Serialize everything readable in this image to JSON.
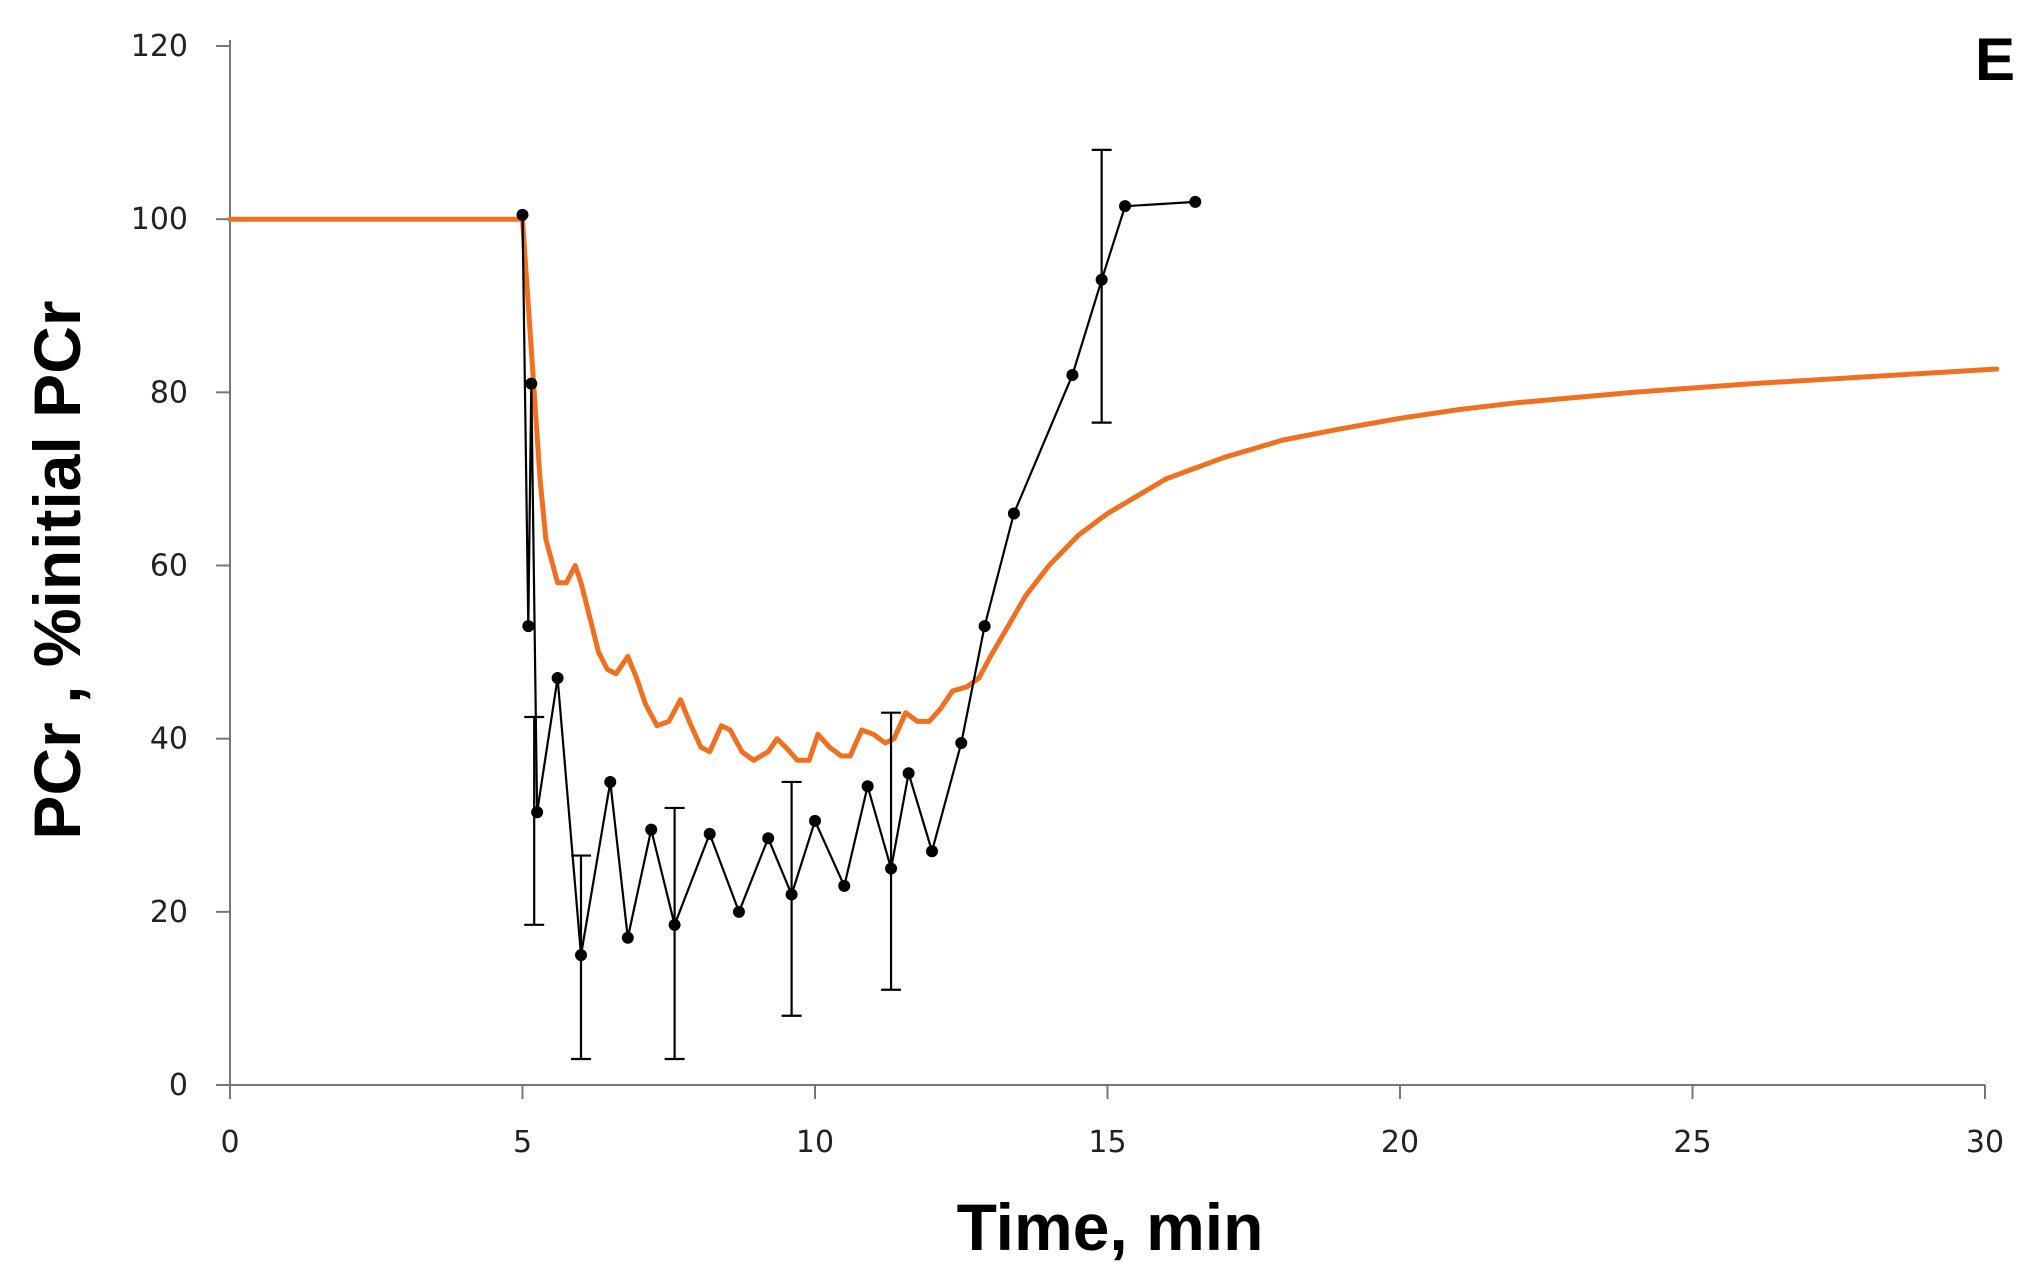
{
  "chart_data": {
    "type": "line",
    "title": "",
    "panel_label": "E",
    "xlabel": "Time, min",
    "ylabel": "PCr , %initial PCr",
    "xlim": [
      0,
      30
    ],
    "ylim": [
      0,
      120
    ],
    "xticks": [
      "0",
      "5",
      "10",
      "15",
      "20",
      "25",
      "30"
    ],
    "yticks": [
      "0",
      "20",
      "40",
      "60",
      "80",
      "100",
      "120"
    ],
    "grid": false,
    "legend": "none",
    "series": [
      {
        "color": "#f07020",
        "style": "line",
        "points": [
          [
            0,
            100
          ],
          [
            5.0,
            100
          ],
          [
            5.1,
            90
          ],
          [
            5.2,
            80
          ],
          [
            5.3,
            70
          ],
          [
            5.4,
            63
          ],
          [
            5.6,
            58
          ],
          [
            5.75,
            58
          ],
          [
            5.9,
            60
          ],
          [
            6.0,
            58
          ],
          [
            6.15,
            54
          ],
          [
            6.3,
            50
          ],
          [
            6.45,
            48
          ],
          [
            6.6,
            47.5
          ],
          [
            6.8,
            49.5
          ],
          [
            6.95,
            47
          ],
          [
            7.1,
            44
          ],
          [
            7.3,
            41.5
          ],
          [
            7.5,
            42
          ],
          [
            7.7,
            44.5
          ],
          [
            7.85,
            42
          ],
          [
            8.05,
            39
          ],
          [
            8.2,
            38.5
          ],
          [
            8.4,
            41.5
          ],
          [
            8.55,
            41
          ],
          [
            8.75,
            38.5
          ],
          [
            8.95,
            37.5
          ],
          [
            9.2,
            38.5
          ],
          [
            9.35,
            40
          ],
          [
            9.5,
            39
          ],
          [
            9.7,
            37.5
          ],
          [
            9.9,
            37.5
          ],
          [
            10.05,
            40.5
          ],
          [
            10.25,
            39
          ],
          [
            10.45,
            38
          ],
          [
            10.6,
            38
          ],
          [
            10.8,
            41
          ],
          [
            11.0,
            40.5
          ],
          [
            11.2,
            39.5
          ],
          [
            11.35,
            40
          ],
          [
            11.55,
            43
          ],
          [
            11.75,
            42
          ],
          [
            11.95,
            42
          ],
          [
            12.15,
            43.5
          ],
          [
            12.35,
            45.5
          ],
          [
            12.6,
            46
          ],
          [
            12.8,
            47
          ],
          [
            13.0,
            49.5
          ],
          [
            13.3,
            53
          ],
          [
            13.6,
            56.5
          ],
          [
            14.0,
            60
          ],
          [
            14.5,
            63.5
          ],
          [
            15.0,
            66
          ],
          [
            15.5,
            68
          ],
          [
            16.0,
            70
          ],
          [
            17.0,
            72.5
          ],
          [
            18.0,
            74.5
          ],
          [
            19.0,
            75.8
          ],
          [
            20.0,
            77
          ],
          [
            21.0,
            78
          ],
          [
            22.0,
            78.8
          ],
          [
            23.0,
            79.4
          ],
          [
            24.0,
            80
          ],
          [
            25.0,
            80.5
          ],
          [
            26.0,
            81
          ],
          [
            27.0,
            81.4
          ],
          [
            28.0,
            81.8
          ],
          [
            29.0,
            82.2
          ],
          [
            30.2,
            82.7
          ]
        ]
      },
      {
        "color": "#000000",
        "style": "line-markers",
        "points": [
          [
            5.0,
            100.5
          ],
          [
            5.1,
            53
          ],
          [
            5.15,
            81
          ],
          [
            5.25,
            31.5
          ],
          [
            5.6,
            47
          ],
          [
            6.0,
            15
          ],
          [
            6.5,
            35
          ],
          [
            6.8,
            17
          ],
          [
            7.2,
            29.5
          ],
          [
            7.6,
            18.5
          ],
          [
            8.2,
            29
          ],
          [
            8.7,
            20
          ],
          [
            9.2,
            28.5
          ],
          [
            9.6,
            22
          ],
          [
            10.0,
            30.5
          ],
          [
            10.5,
            23
          ],
          [
            10.9,
            34.5
          ],
          [
            11.3,
            25
          ],
          [
            11.6,
            36
          ],
          [
            12.0,
            27
          ],
          [
            12.5,
            39.5
          ],
          [
            12.9,
            53
          ],
          [
            13.4,
            66
          ],
          [
            14.4,
            82
          ],
          [
            14.9,
            93
          ],
          [
            15.3,
            101.5
          ],
          [
            16.5,
            102
          ]
        ],
        "error_bars": [
          [
            5.2,
            18.5,
            42.5
          ],
          [
            6.0,
            3,
            26.5
          ],
          [
            7.6,
            3,
            32
          ],
          [
            9.6,
            8,
            35
          ],
          [
            11.3,
            11,
            43
          ],
          [
            14.9,
            76.5,
            108
          ]
        ]
      }
    ]
  }
}
